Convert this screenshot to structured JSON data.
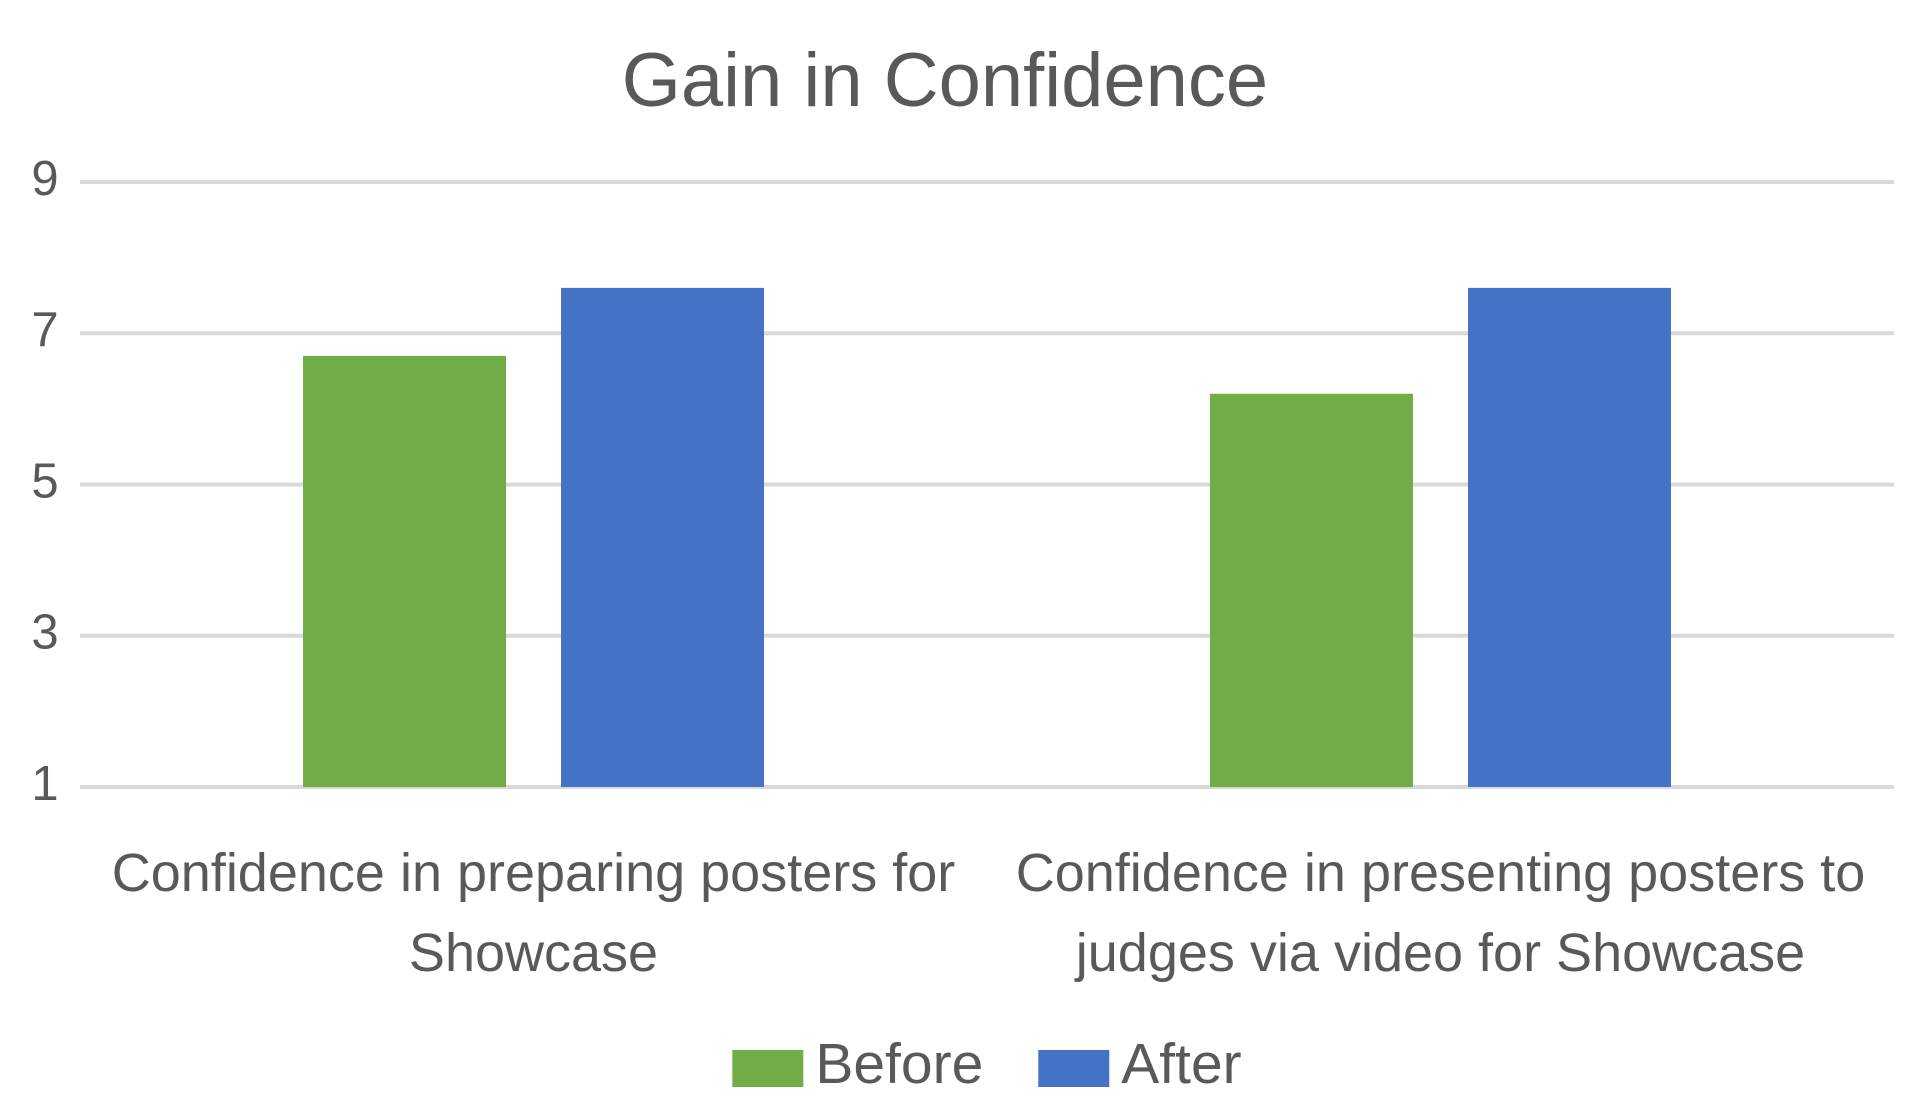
{
  "chart_data": {
    "type": "bar",
    "title": "Gain in Confidence",
    "categories": [
      "Confidence in preparing posters for Showcase",
      "Confidence in presenting posters to judges via video for Showcase"
    ],
    "series": [
      {
        "name": "Before",
        "color": "#70ad47",
        "values": [
          6.7,
          6.2
        ]
      },
      {
        "name": "After",
        "color": "#4472c4",
        "values": [
          7.6,
          7.6
        ]
      }
    ],
    "ylim": [
      1,
      9
    ],
    "yticks": [
      1,
      3,
      5,
      7,
      9
    ],
    "grid": true,
    "legend": "bottom"
  }
}
